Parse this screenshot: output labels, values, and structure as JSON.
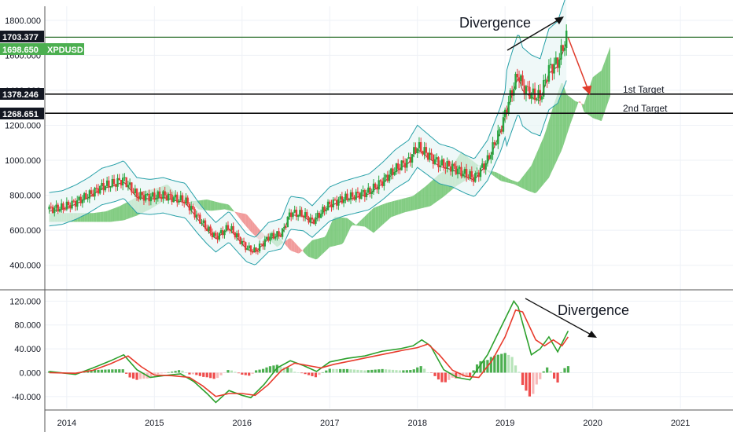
{
  "colors": {
    "grid": "#eef1f6",
    "bb": "#26a0a8",
    "bb_fill": "#e8f5f5",
    "basis": "#9c2b2b",
    "cloud_bull": "#6cc36c",
    "cloud_bear": "#ef8a8a",
    "up": "#26a641",
    "down": "#e63b3b",
    "macd": "#2ca02c",
    "signal": "#e83b2c",
    "hist_up": "#4caf50",
    "hist_up_light": "#b7e4b9",
    "hist_down": "#ef4d4d",
    "hist_down_light": "#f7b8b8",
    "annotation": "#e03c2c",
    "badge_dark": "#131722",
    "badge_price": "#4caf50"
  },
  "symbol": "XPDUSD",
  "price_badges": [
    {
      "label": "1703.377",
      "value": 1703.377,
      "kind": "dark"
    },
    {
      "label": "1698.650",
      "value": 1698.65,
      "kind": "price"
    },
    {
      "label": "1378.246",
      "value": 1378.246,
      "kind": "dark"
    },
    {
      "label": "1268.651",
      "value": 1268.651,
      "kind": "dark"
    }
  ],
  "targets": [
    {
      "label": "1st Target",
      "value": 1378.246
    },
    {
      "label": "2nd Target",
      "value": 1268.651
    }
  ],
  "annotations": {
    "price_divergence": "Divergence",
    "macd_divergence": "Divergence"
  },
  "chart_data": [
    {
      "type": "candlestick",
      "panel": "price",
      "symbol": "XPDUSD",
      "x_ticks": [
        "2014",
        "2015",
        "2016",
        "2017",
        "2018",
        "2019",
        "2020",
        "2021"
      ],
      "y_ticks": [
        "400.000",
        "600.000",
        "800.000",
        "1000.000",
        "1200.000",
        "1400.000",
        "1600.000",
        "1800.000"
      ],
      "ylim": [
        300,
        1880
      ],
      "xlim": [
        2013.75,
        2021.6
      ],
      "horizontal_levels": [
        1703.377,
        1378.246,
        1268.651
      ],
      "close_series": [
        [
          2013.8,
          720
        ],
        [
          2013.95,
          730
        ],
        [
          2014.1,
          760
        ],
        [
          2014.25,
          800
        ],
        [
          2014.4,
          850
        ],
        [
          2014.55,
          870
        ],
        [
          2014.65,
          890
        ],
        [
          2014.8,
          800
        ],
        [
          2014.95,
          790
        ],
        [
          2015.1,
          800
        ],
        [
          2015.25,
          780
        ],
        [
          2015.35,
          770
        ],
        [
          2015.5,
          670
        ],
        [
          2015.6,
          610
        ],
        [
          2015.7,
          560
        ],
        [
          2015.85,
          620
        ],
        [
          2015.95,
          560
        ],
        [
          2016.05,
          500
        ],
        [
          2016.15,
          480
        ],
        [
          2016.3,
          560
        ],
        [
          2016.45,
          580
        ],
        [
          2016.55,
          700
        ],
        [
          2016.7,
          690
        ],
        [
          2016.8,
          650
        ],
        [
          2016.9,
          700
        ],
        [
          2017.0,
          750
        ],
        [
          2017.15,
          780
        ],
        [
          2017.3,
          800
        ],
        [
          2017.45,
          820
        ],
        [
          2017.6,
          880
        ],
        [
          2017.75,
          950
        ],
        [
          2017.9,
          1000
        ],
        [
          2018.0,
          1080
        ],
        [
          2018.1,
          1040
        ],
        [
          2018.25,
          980
        ],
        [
          2018.4,
          960
        ],
        [
          2018.55,
          920
        ],
        [
          2018.65,
          900
        ],
        [
          2018.8,
          1000
        ],
        [
          2018.95,
          1180
        ],
        [
          2019.05,
          1350
        ],
        [
          2019.15,
          1500
        ],
        [
          2019.2,
          1420
        ],
        [
          2019.3,
          1380
        ],
        [
          2019.4,
          1360
        ],
        [
          2019.5,
          1520
        ],
        [
          2019.6,
          1560
        ],
        [
          2019.7,
          1700
        ]
      ],
      "projection": {
        "from": [
          2019.72,
          1700
        ],
        "to": [
          2019.95,
          1400
        ],
        "note": "red arrow toward targets"
      }
    },
    {
      "type": "line",
      "panel": "macd",
      "y_ticks": [
        "-40.000",
        "0.000",
        "40.000",
        "80.000",
        "120.000"
      ],
      "ylim": [
        -60,
        135
      ],
      "series": [
        {
          "values": [
            [
              2013.8,
              2
            ],
            [
              2014.1,
              -3
            ],
            [
              2014.3,
              8
            ],
            [
              2014.5,
              20
            ],
            [
              2014.65,
              30
            ],
            [
              2014.8,
              5
            ],
            [
              2014.95,
              -8
            ],
            [
              2015.1,
              -5
            ],
            [
              2015.3,
              -2
            ],
            [
              2015.45,
              -15
            ],
            [
              2015.6,
              -35
            ],
            [
              2015.7,
              -50
            ],
            [
              2015.85,
              -30
            ],
            [
              2016.0,
              -38
            ],
            [
              2016.1,
              -42
            ],
            [
              2016.25,
              -20
            ],
            [
              2016.4,
              8
            ],
            [
              2016.55,
              20
            ],
            [
              2016.7,
              12
            ],
            [
              2016.85,
              2
            ],
            [
              2017.0,
              18
            ],
            [
              2017.2,
              24
            ],
            [
              2017.4,
              28
            ],
            [
              2017.6,
              36
            ],
            [
              2017.8,
              40
            ],
            [
              2017.95,
              45
            ],
            [
              2018.05,
              55
            ],
            [
              2018.15,
              45
            ],
            [
              2018.3,
              5
            ],
            [
              2018.45,
              -8
            ],
            [
              2018.6,
              -12
            ],
            [
              2018.8,
              30
            ],
            [
              2018.95,
              75
            ],
            [
              2019.1,
              120
            ],
            [
              2019.15,
              110
            ],
            [
              2019.3,
              30
            ],
            [
              2019.4,
              40
            ],
            [
              2019.5,
              60
            ],
            [
              2019.6,
              35
            ],
            [
              2019.72,
              70
            ]
          ]
        },
        {
          "values": [
            [
              2013.8,
              0
            ],
            [
              2014.1,
              -1
            ],
            [
              2014.3,
              4
            ],
            [
              2014.5,
              15
            ],
            [
              2014.7,
              28
            ],
            [
              2014.85,
              10
            ],
            [
              2015.0,
              -4
            ],
            [
              2015.2,
              -5
            ],
            [
              2015.4,
              -8
            ],
            [
              2015.55,
              -22
            ],
            [
              2015.7,
              -40
            ],
            [
              2015.85,
              -35
            ],
            [
              2016.0,
              -35
            ],
            [
              2016.15,
              -38
            ],
            [
              2016.3,
              -20
            ],
            [
              2016.45,
              4
            ],
            [
              2016.6,
              16
            ],
            [
              2016.75,
              12
            ],
            [
              2016.9,
              8
            ],
            [
              2017.05,
              14
            ],
            [
              2017.25,
              20
            ],
            [
              2017.45,
              26
            ],
            [
              2017.65,
              32
            ],
            [
              2017.85,
              38
            ],
            [
              2018.0,
              42
            ],
            [
              2018.12,
              48
            ],
            [
              2018.25,
              30
            ],
            [
              2018.4,
              4
            ],
            [
              2018.55,
              -6
            ],
            [
              2018.7,
              -8
            ],
            [
              2018.85,
              20
            ],
            [
              2019.0,
              60
            ],
            [
              2019.12,
              105
            ],
            [
              2019.2,
              102
            ],
            [
              2019.35,
              55
            ],
            [
              2019.45,
              45
            ],
            [
              2019.55,
              55
            ],
            [
              2019.65,
              45
            ],
            [
              2019.72,
              60
            ]
          ]
        }
      ]
    }
  ]
}
